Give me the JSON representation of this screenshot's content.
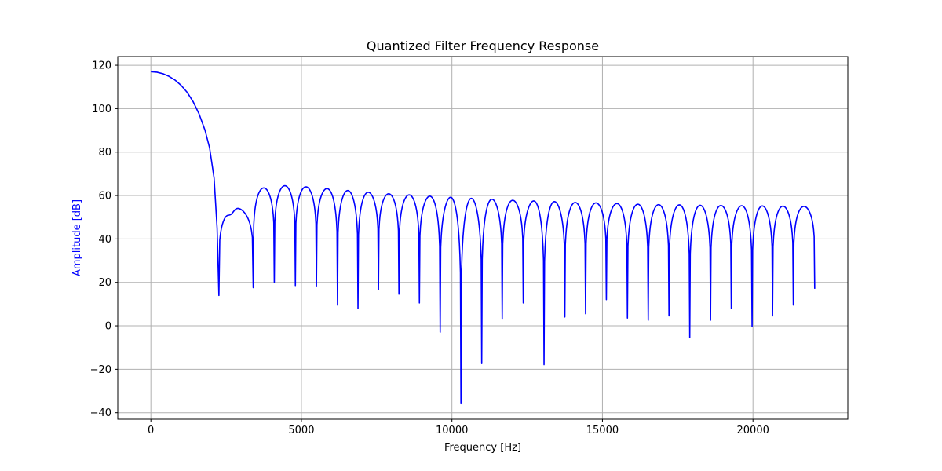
{
  "chart_data": {
    "type": "line",
    "title": "Quantized Filter Frequency Response",
    "xlabel": "Frequency [Hz]",
    "ylabel": "Amplitude [dB]",
    "ylabel_color": "#0000ff",
    "xlim": [
      -1100,
      23150
    ],
    "ylim": [
      -43,
      124
    ],
    "xticks": [
      0,
      5000,
      10000,
      15000,
      20000
    ],
    "yticks": [
      -40,
      -20,
      0,
      20,
      40,
      60,
      80,
      100,
      120
    ],
    "grid": true,
    "series": [
      {
        "color": "#0000ff",
        "main_lobe": [
          [
            0,
            117
          ],
          [
            200,
            116.8
          ],
          [
            400,
            116.1
          ],
          [
            600,
            114.9
          ],
          [
            800,
            113.2
          ],
          [
            1000,
            110.8
          ],
          [
            1200,
            107.6
          ],
          [
            1400,
            103.3
          ],
          [
            1600,
            97.6
          ],
          [
            1800,
            90.0
          ],
          [
            1950,
            82.0
          ],
          [
            2100,
            68.0
          ],
          [
            2200,
            45.0
          ],
          [
            2260,
            14.0
          ]
        ],
        "nulls": [
          [
            2260,
            14
          ],
          [
            3400,
            17.5
          ],
          [
            4100,
            20
          ],
          [
            4800,
            18.5
          ],
          [
            5500,
            18.3
          ],
          [
            6200,
            9.5
          ],
          [
            6880,
            8
          ],
          [
            7560,
            16.5
          ],
          [
            8240,
            14.5
          ],
          [
            8920,
            10.5
          ],
          [
            9610,
            -3
          ],
          [
            10300,
            -36
          ],
          [
            10990,
            -17.5
          ],
          [
            11670,
            3
          ],
          [
            12370,
            10.5
          ],
          [
            13060,
            -18
          ],
          [
            13750,
            4
          ],
          [
            14440,
            5.5
          ],
          [
            15130,
            12
          ],
          [
            15830,
            3.5
          ],
          [
            16520,
            2.5
          ],
          [
            17210,
            4.5
          ],
          [
            17900,
            -5.5
          ],
          [
            18590,
            2.5
          ],
          [
            19280,
            8
          ],
          [
            19970,
            -0.5
          ],
          [
            20650,
            4.5
          ],
          [
            21340,
            9.5
          ],
          [
            22050,
            17
          ]
        ],
        "lobe_peaks": [
          [
            2420,
            54.3
          ],
          [
            3050,
            63.5
          ],
          [
            3750,
            64.5
          ],
          [
            4450,
            64
          ],
          [
            5150,
            63.2
          ],
          [
            5850,
            62.3
          ],
          [
            6550,
            61.5
          ],
          [
            7220,
            60.8
          ],
          [
            7900,
            60.3
          ],
          [
            8580,
            59.7
          ],
          [
            9260,
            59.2
          ],
          [
            9950,
            58.7
          ],
          [
            10650,
            58.3
          ],
          [
            11330,
            57.8
          ],
          [
            12020,
            57.5
          ],
          [
            12700,
            57.2
          ],
          [
            13400,
            56.8
          ],
          [
            14100,
            56.6
          ],
          [
            14790,
            56.3
          ],
          [
            15480,
            56.0
          ],
          [
            16170,
            55.8
          ],
          [
            16860,
            55.7
          ],
          [
            17550,
            55.5
          ],
          [
            18240,
            55.4
          ],
          [
            18940,
            55.3
          ],
          [
            19630,
            55.2
          ],
          [
            20310,
            55.1
          ],
          [
            21000,
            55.0
          ],
          [
            21700,
            55.0
          ]
        ]
      }
    ]
  }
}
